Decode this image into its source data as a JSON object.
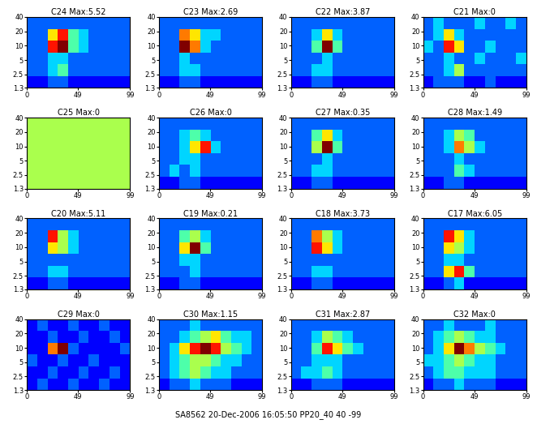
{
  "chart_data": {
    "type": "heatmap",
    "footer": "SA8562 20-Dec-2006 16:05:50 PP20_40 40 -99",
    "xlim": [
      0,
      99
    ],
    "xticks": [
      0,
      49,
      99
    ],
    "ylim": [
      1.3,
      40
    ],
    "yticks": [
      1.3,
      2.5,
      5,
      10,
      20,
      40
    ],
    "log": "y",
    "color_range": [
      0,
      9
    ],
    "panels": [
      {
        "title": "C24 Max:5.52",
        "cells": [
          [
            2,
            2,
            2,
            2,
            2,
            2,
            2,
            2,
            2,
            2
          ],
          [
            2,
            2,
            6,
            8,
            4,
            3,
            2,
            2,
            2,
            2
          ],
          [
            2,
            2,
            8,
            9,
            4,
            3,
            2,
            2,
            2,
            2
          ],
          [
            2,
            2,
            3,
            3,
            2,
            2,
            2,
            2,
            2,
            2
          ],
          [
            2,
            2,
            3,
            4,
            2,
            2,
            2,
            2,
            2,
            2
          ],
          [
            1,
            1,
            2,
            2,
            1,
            1,
            1,
            1,
            1,
            1
          ]
        ]
      },
      {
        "title": "C23 Max:2.69",
        "cells": [
          [
            2,
            2,
            2,
            2,
            2,
            2,
            2,
            2,
            2,
            2
          ],
          [
            2,
            2,
            7,
            6,
            3,
            3,
            2,
            2,
            2,
            2
          ],
          [
            2,
            2,
            9,
            7,
            3,
            2,
            2,
            2,
            2,
            2
          ],
          [
            2,
            2,
            3,
            2,
            2,
            2,
            2,
            2,
            2,
            2
          ],
          [
            2,
            2,
            3,
            3,
            2,
            2,
            2,
            2,
            2,
            2
          ],
          [
            1,
            1,
            2,
            2,
            1,
            1,
            1,
            1,
            1,
            1
          ]
        ]
      },
      {
        "title": "C22 Max:3.87",
        "cells": [
          [
            2,
            2,
            2,
            2,
            2,
            2,
            2,
            2,
            2,
            2
          ],
          [
            2,
            2,
            3,
            6,
            3,
            2,
            2,
            2,
            2,
            2
          ],
          [
            2,
            2,
            4,
            9,
            4,
            2,
            2,
            2,
            2,
            2
          ],
          [
            2,
            2,
            2,
            3,
            2,
            2,
            2,
            2,
            2,
            2
          ],
          [
            2,
            2,
            3,
            3,
            2,
            2,
            2,
            2,
            2,
            2
          ],
          [
            1,
            1,
            2,
            2,
            1,
            1,
            1,
            1,
            1,
            1
          ]
        ]
      },
      {
        "title": "C21 Max:0",
        "cells": [
          [
            2,
            3,
            2,
            2,
            2,
            3,
            2,
            2,
            3,
            2
          ],
          [
            2,
            3,
            6,
            3,
            2,
            2,
            2,
            2,
            2,
            2
          ],
          [
            3,
            2,
            8,
            6,
            2,
            2,
            3,
            2,
            2,
            2
          ],
          [
            2,
            2,
            3,
            2,
            2,
            3,
            2,
            2,
            2,
            3
          ],
          [
            2,
            2,
            3,
            5,
            2,
            2,
            2,
            2,
            2,
            2
          ],
          [
            1,
            2,
            2,
            2,
            1,
            1,
            2,
            1,
            1,
            1
          ]
        ]
      },
      {
        "title": "C25 Max:0",
        "cells": [
          [
            5,
            5,
            5,
            5,
            5,
            5,
            5,
            5,
            5,
            5
          ],
          [
            5,
            5,
            5,
            5,
            5,
            5,
            5,
            5,
            5,
            5
          ],
          [
            5,
            5,
            5,
            5,
            5,
            5,
            5,
            5,
            5,
            5
          ],
          [
            5,
            5,
            5,
            5,
            5,
            5,
            5,
            5,
            5,
            5
          ],
          [
            5,
            5,
            5,
            5,
            5,
            5,
            5,
            5,
            5,
            5
          ],
          [
            5,
            5,
            5,
            5,
            5,
            5,
            5,
            5,
            5,
            5
          ]
        ]
      },
      {
        "title": "C26 Max:0",
        "cells": [
          [
            2,
            2,
            2,
            2,
            2,
            2,
            2,
            2,
            2,
            2
          ],
          [
            2,
            2,
            3,
            4,
            3,
            2,
            2,
            2,
            2,
            2
          ],
          [
            2,
            2,
            3,
            6,
            8,
            3,
            2,
            2,
            2,
            2
          ],
          [
            2,
            2,
            3,
            3,
            2,
            2,
            2,
            2,
            2,
            2
          ],
          [
            2,
            3,
            2,
            3,
            2,
            2,
            2,
            2,
            2,
            2
          ],
          [
            1,
            1,
            2,
            2,
            1,
            1,
            1,
            1,
            1,
            1
          ]
        ]
      },
      {
        "title": "C27 Max:0.35",
        "cells": [
          [
            2,
            2,
            2,
            2,
            2,
            2,
            2,
            2,
            2,
            2
          ],
          [
            2,
            2,
            4,
            6,
            3,
            2,
            2,
            2,
            2,
            2
          ],
          [
            2,
            2,
            5,
            9,
            4,
            2,
            2,
            2,
            2,
            2
          ],
          [
            2,
            2,
            2,
            3,
            2,
            2,
            2,
            2,
            2,
            2
          ],
          [
            2,
            2,
            3,
            3,
            2,
            2,
            2,
            2,
            2,
            2
          ],
          [
            1,
            1,
            2,
            2,
            1,
            1,
            1,
            1,
            1,
            1
          ]
        ]
      },
      {
        "title": "C28 Max:1.49",
        "cells": [
          [
            2,
            2,
            2,
            2,
            2,
            2,
            2,
            2,
            2,
            2
          ],
          [
            2,
            2,
            3,
            5,
            4,
            2,
            2,
            2,
            2,
            2
          ],
          [
            2,
            2,
            3,
            7,
            5,
            3,
            2,
            2,
            2,
            2
          ],
          [
            2,
            2,
            2,
            3,
            2,
            2,
            2,
            2,
            2,
            2
          ],
          [
            2,
            2,
            2,
            4,
            3,
            2,
            2,
            2,
            2,
            2
          ],
          [
            1,
            1,
            2,
            2,
            1,
            1,
            1,
            1,
            1,
            1
          ]
        ]
      },
      {
        "title": "C20 Max:5.11",
        "cells": [
          [
            2,
            2,
            2,
            2,
            2,
            2,
            2,
            2,
            2,
            2
          ],
          [
            2,
            2,
            8,
            5,
            3,
            2,
            2,
            2,
            2,
            2
          ],
          [
            2,
            2,
            6,
            5,
            3,
            2,
            2,
            2,
            2,
            2
          ],
          [
            2,
            2,
            2,
            2,
            2,
            2,
            2,
            2,
            2,
            2
          ],
          [
            2,
            2,
            3,
            3,
            2,
            2,
            2,
            2,
            2,
            2
          ],
          [
            1,
            1,
            2,
            2,
            1,
            1,
            1,
            1,
            1,
            1
          ]
        ]
      },
      {
        "title": "C19 Max:0.21",
        "cells": [
          [
            2,
            2,
            2,
            2,
            2,
            2,
            2,
            2,
            2,
            2
          ],
          [
            2,
            2,
            4,
            5,
            3,
            2,
            2,
            2,
            2,
            2
          ],
          [
            2,
            2,
            6,
            9,
            4,
            2,
            2,
            2,
            2,
            2
          ],
          [
            2,
            2,
            3,
            3,
            2,
            2,
            2,
            2,
            2,
            2
          ],
          [
            2,
            2,
            2,
            3,
            2,
            2,
            2,
            2,
            2,
            2
          ],
          [
            1,
            1,
            2,
            2,
            1,
            1,
            1,
            1,
            1,
            1
          ]
        ]
      },
      {
        "title": "C18 Max:3.73",
        "cells": [
          [
            2,
            2,
            2,
            2,
            2,
            2,
            2,
            2,
            2,
            2
          ],
          [
            2,
            2,
            7,
            5,
            3,
            2,
            2,
            2,
            2,
            2
          ],
          [
            2,
            2,
            8,
            6,
            3,
            2,
            2,
            2,
            2,
            2
          ],
          [
            2,
            2,
            2,
            2,
            2,
            2,
            2,
            2,
            2,
            2
          ],
          [
            2,
            2,
            3,
            3,
            2,
            2,
            2,
            2,
            2,
            2
          ],
          [
            1,
            1,
            2,
            2,
            1,
            1,
            1,
            1,
            1,
            1
          ]
        ]
      },
      {
        "title": "C17 Max:6.05",
        "cells": [
          [
            2,
            2,
            2,
            2,
            2,
            2,
            2,
            2,
            2,
            2
          ],
          [
            2,
            2,
            8,
            6,
            3,
            2,
            2,
            2,
            2,
            2
          ],
          [
            2,
            2,
            6,
            5,
            3,
            2,
            2,
            2,
            2,
            2
          ],
          [
            2,
            2,
            3,
            3,
            2,
            2,
            2,
            2,
            2,
            2
          ],
          [
            2,
            2,
            6,
            8,
            4,
            2,
            2,
            2,
            2,
            2
          ],
          [
            1,
            1,
            2,
            3,
            1,
            1,
            1,
            1,
            1,
            1
          ]
        ]
      },
      {
        "title": "C29 Max:0",
        "cells": [
          [
            1,
            2,
            1,
            1,
            2,
            1,
            1,
            2,
            1,
            1
          ],
          [
            1,
            1,
            2,
            1,
            1,
            2,
            1,
            1,
            2,
            1
          ],
          [
            1,
            1,
            7,
            9,
            2,
            1,
            1,
            1,
            1,
            2
          ],
          [
            2,
            1,
            1,
            2,
            1,
            1,
            2,
            1,
            1,
            1
          ],
          [
            1,
            1,
            2,
            1,
            1,
            2,
            1,
            1,
            2,
            1
          ],
          [
            1,
            2,
            1,
            1,
            2,
            1,
            1,
            2,
            1,
            1
          ]
        ]
      },
      {
        "title": "C30 Max:1.15",
        "cells": [
          [
            2,
            2,
            2,
            3,
            2,
            2,
            2,
            2,
            2,
            2
          ],
          [
            2,
            2,
            3,
            4,
            5,
            6,
            4,
            3,
            3,
            2
          ],
          [
            2,
            3,
            6,
            8,
            9,
            8,
            5,
            4,
            3,
            2
          ],
          [
            2,
            3,
            4,
            5,
            5,
            4,
            3,
            3,
            2,
            2
          ],
          [
            2,
            3,
            4,
            5,
            4,
            3,
            3,
            2,
            2,
            2
          ],
          [
            1,
            2,
            2,
            3,
            2,
            2,
            2,
            1,
            1,
            1
          ]
        ]
      },
      {
        "title": "C31 Max:2.87",
        "cells": [
          [
            2,
            2,
            2,
            2,
            2,
            2,
            2,
            2,
            2,
            2
          ],
          [
            2,
            2,
            3,
            5,
            4,
            3,
            2,
            2,
            2,
            2
          ],
          [
            2,
            2,
            4,
            8,
            6,
            4,
            3,
            2,
            2,
            2
          ],
          [
            2,
            2,
            3,
            3,
            3,
            2,
            2,
            2,
            2,
            2
          ],
          [
            2,
            3,
            3,
            4,
            3,
            2,
            2,
            2,
            2,
            2
          ],
          [
            1,
            1,
            2,
            2,
            2,
            1,
            1,
            1,
            1,
            1
          ]
        ]
      },
      {
        "title": "C32 Max:0",
        "cells": [
          [
            2,
            2,
            3,
            2,
            2,
            2,
            3,
            2,
            2,
            2
          ],
          [
            2,
            3,
            4,
            5,
            4,
            3,
            3,
            2,
            2,
            2
          ],
          [
            2,
            3,
            6,
            9,
            7,
            5,
            4,
            3,
            2,
            2
          ],
          [
            3,
            3,
            4,
            5,
            4,
            3,
            3,
            2,
            2,
            2
          ],
          [
            2,
            3,
            4,
            4,
            3,
            3,
            3,
            2,
            2,
            2
          ],
          [
            1,
            2,
            2,
            3,
            2,
            2,
            2,
            1,
            1,
            1
          ]
        ]
      }
    ]
  }
}
